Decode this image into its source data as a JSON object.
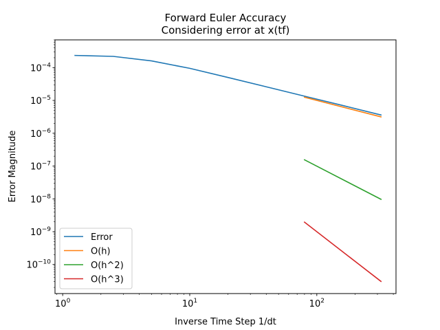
{
  "chart_data": {
    "type": "line",
    "title": "Forward Euler Accuracy",
    "subtitle": "Considering error at x(tf)",
    "xlabel": "Inverse Time Step 1/dt",
    "ylabel": "Error Magnitude",
    "xscale": "log",
    "yscale": "log",
    "xlim": [
      0.87,
      420
    ],
    "ylim": [
      1.3e-11,
      0.0007
    ],
    "grid": false,
    "legend_position": "lower-left",
    "x_ticks": [
      {
        "value": 1,
        "base": "10",
        "exp": "0"
      },
      {
        "value": 10,
        "base": "10",
        "exp": "1"
      },
      {
        "value": 100,
        "base": "10",
        "exp": "2"
      }
    ],
    "y_ticks": [
      {
        "value": 1e-10,
        "base": "10",
        "exp": "−10"
      },
      {
        "value": 1e-09,
        "base": "10",
        "exp": "−9"
      },
      {
        "value": 1e-08,
        "base": "10",
        "exp": "−8"
      },
      {
        "value": 1e-07,
        "base": "10",
        "exp": "−7"
      },
      {
        "value": 1e-06,
        "base": "10",
        "exp": "−6"
      },
      {
        "value": 1e-05,
        "base": "10",
        "exp": "−5"
      },
      {
        "value": 0.0001,
        "base": "10",
        "exp": "−4"
      }
    ],
    "series": [
      {
        "name": "Error",
        "color": "#1f77b4",
        "x": [
          1.25,
          2.5,
          5,
          10,
          20,
          40,
          80,
          160,
          320
        ],
        "y": [
          0.000235,
          0.00022,
          0.00016,
          9.5e-05,
          5e-05,
          2.6e-05,
          1.35e-05,
          7e-06,
          3.6e-06
        ]
      },
      {
        "name": "O(h)",
        "color": "#ff7f0e",
        "x": [
          80,
          320
        ],
        "y": [
          1.25e-05,
          3.15e-06
        ]
      },
      {
        "name": "O(h^2)",
        "color": "#2ca02c",
        "x": [
          80,
          320
        ],
        "y": [
          1.55e-07,
          9.7e-09
        ]
      },
      {
        "name": "O(h^3)",
        "color": "#d62728",
        "x": [
          80,
          320
        ],
        "y": [
          1.95e-09,
          3.05e-11
        ]
      }
    ]
  }
}
